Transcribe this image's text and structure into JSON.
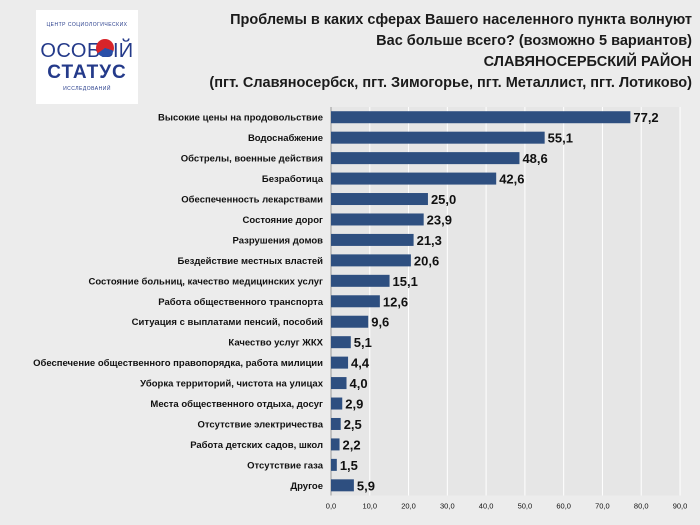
{
  "logo": {
    "top_text": "ЦЕНТР СОЦИОЛОГИЧЕСКИХ",
    "word1": "ОСОБЫЙ",
    "word2": "СТАТУС",
    "bottom_text": "ИССЛЕДОВАНИЙ"
  },
  "title_lines": [
    "Проблемы в каких сферах Вашего населенного пункта волнуют",
    "Вас больше всего? (возможно 5 вариантов)",
    "СЛАВЯНОСЕРБСКИЙ РАЙОН",
    "(пгт. Славяносербск, пгт. Зимогорье, пгт. Металлист, пгт. Лотиково)"
  ],
  "chart_data": {
    "type": "bar",
    "orientation": "horizontal",
    "categories": [
      "Высокие цены на продовольствие",
      "Водоснабжение",
      "Обстрелы, военные действия",
      "Безработица",
      "Обеспеченность лекарствами",
      "Состояние дорог",
      "Разрушения домов",
      "Бездействие местных властей",
      "Состояние больниц, качество медицинских услуг",
      "Работа общественного транспорта",
      "Ситуация с выплатами пенсий, пособий",
      "Качество услуг ЖКХ",
      "Обеспечение общественного правопорядка, работа милиции",
      "Уборка территорий, чистота на улицах",
      "Места общественного отдыха, досуг",
      "Отсутствие электричества",
      "Работа детских садов, школ",
      "Отсутствие газа",
      "Другое"
    ],
    "values": [
      77.2,
      55.1,
      48.6,
      42.6,
      25.0,
      23.9,
      21.3,
      20.6,
      15.1,
      12.6,
      9.6,
      5.1,
      4.4,
      4.0,
      2.9,
      2.5,
      2.2,
      1.5,
      5.9
    ],
    "value_labels": [
      "77,2",
      "55,1",
      "48,6",
      "42,6",
      "25,0",
      "23,9",
      "21,3",
      "20,6",
      "15,1",
      "12,6",
      "9,6",
      "5,1",
      "4,4",
      "4,0",
      "2,9",
      "2,5",
      "2,2",
      "1,5",
      "5,9"
    ],
    "xlim": [
      0,
      90
    ],
    "ticks": [
      0,
      10,
      20,
      30,
      40,
      50,
      60,
      70,
      80,
      90
    ],
    "tick_labels": [
      "0,0",
      "10,0",
      "20,0",
      "30,0",
      "40,0",
      "50,0",
      "60,0",
      "70,0",
      "80,0",
      "90,0"
    ],
    "grid": true,
    "bar_color": "#2e4f80",
    "grid_color": "#ffffff"
  }
}
